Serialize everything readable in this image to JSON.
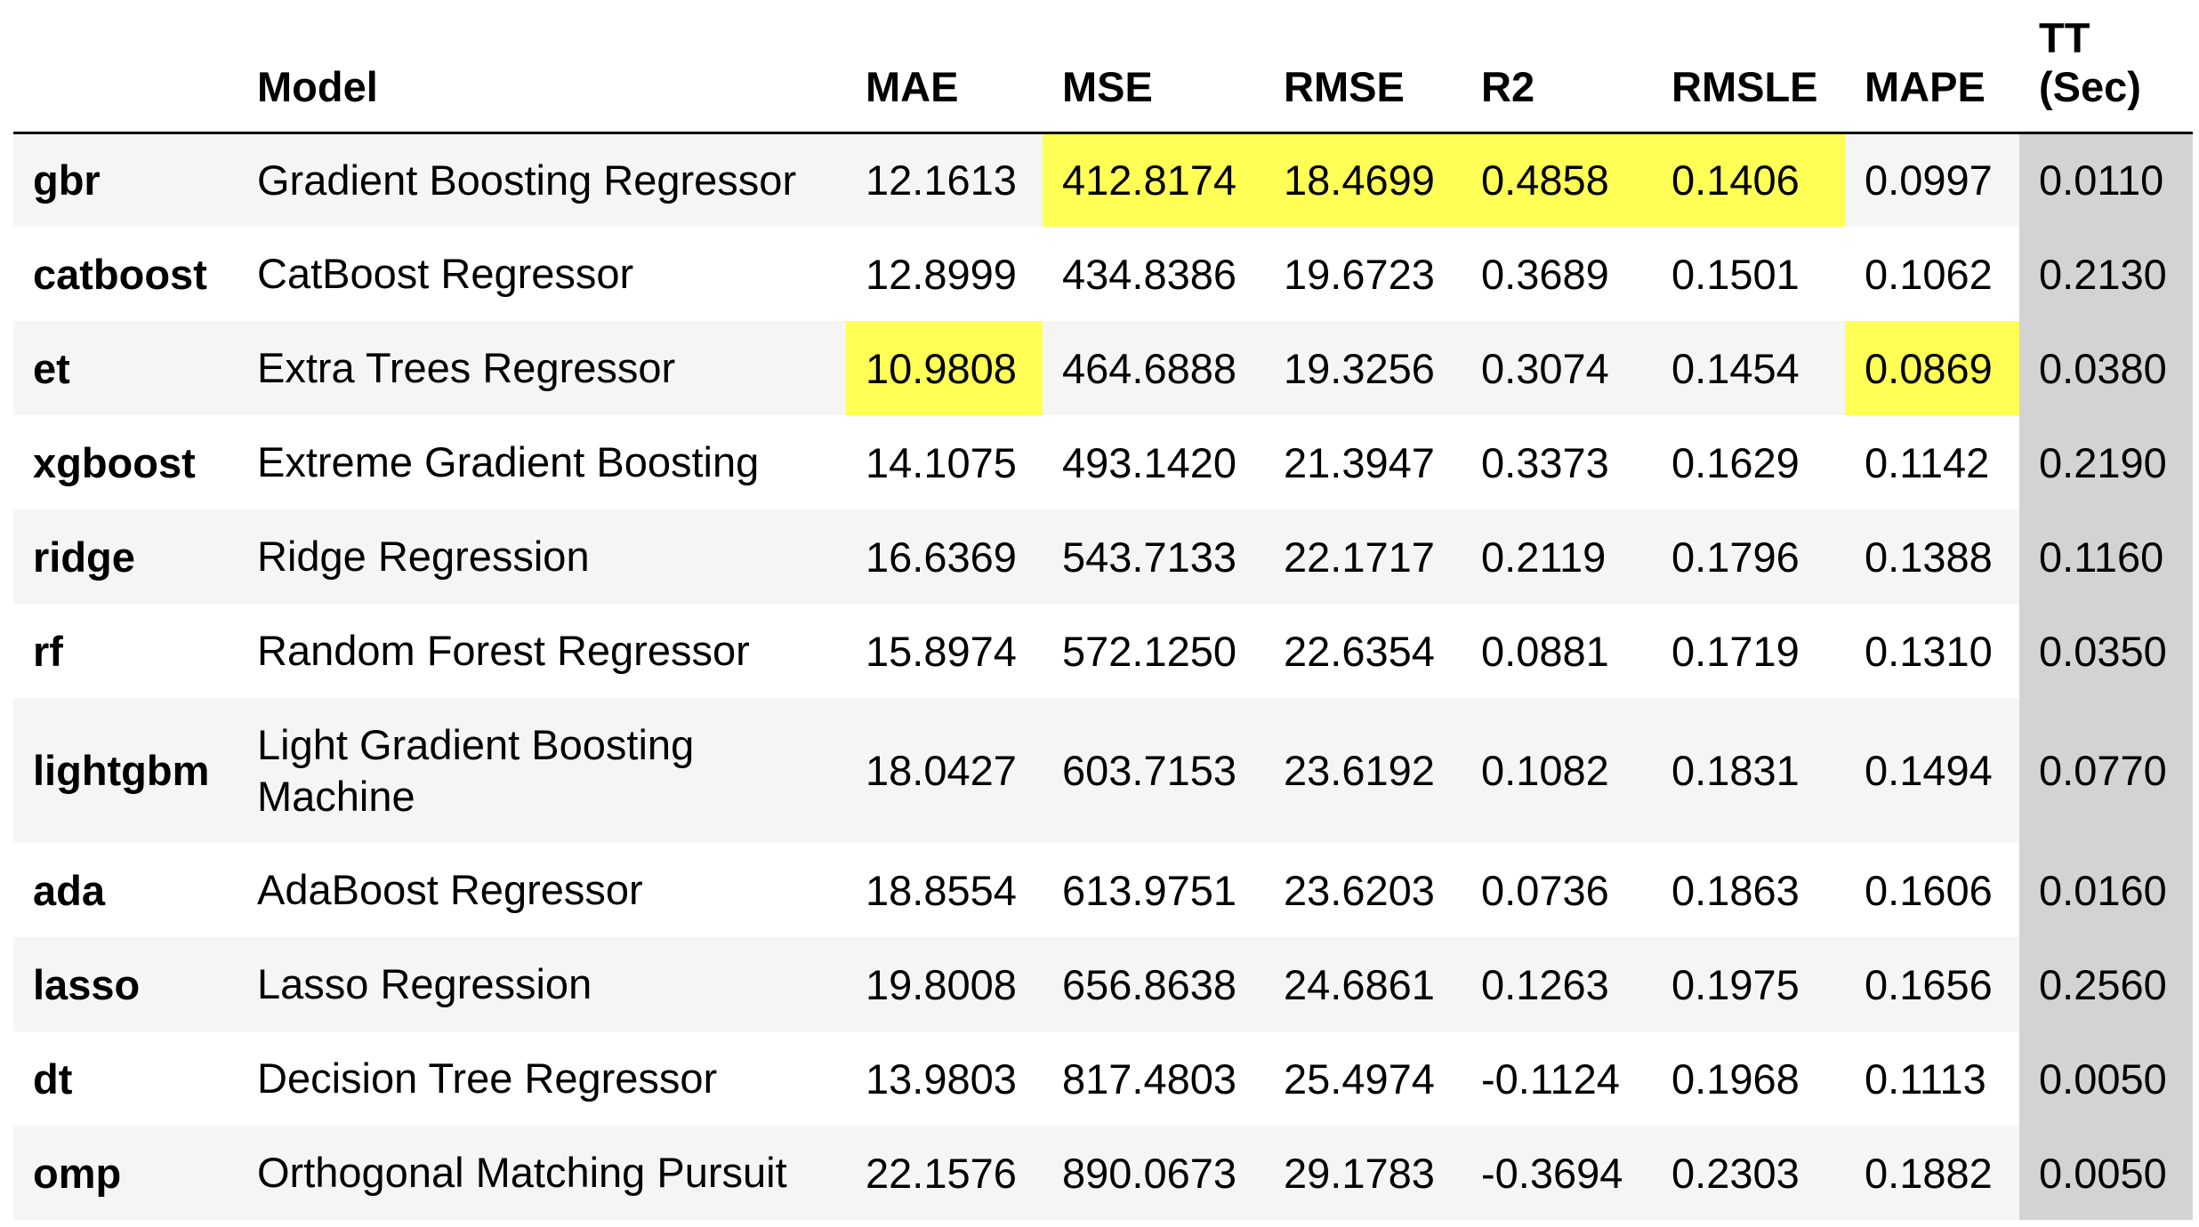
{
  "table": {
    "columns": [
      "",
      "Model",
      "MAE",
      "MSE",
      "RMSE",
      "R2",
      "RMSLE",
      "MAPE",
      "TT (Sec)"
    ],
    "header_tt_line1": "TT",
    "header_tt_line2": "(Sec)",
    "highlight_color": "#ffff55",
    "tt_column_color": "#d3d3d3",
    "rows": [
      {
        "id": "gbr",
        "model": "Gradient Boosting Regressor",
        "mae": "12.1613",
        "mse": "412.8174",
        "rmse": "18.4699",
        "r2": "0.4858",
        "rmsle": "0.1406",
        "mape": "0.0997",
        "tt": "0.0110",
        "highlighted": [
          "mse",
          "rmse",
          "r2",
          "rmsle"
        ]
      },
      {
        "id": "catboost",
        "model": "CatBoost Regressor",
        "mae": "12.8999",
        "mse": "434.8386",
        "rmse": "19.6723",
        "r2": "0.3689",
        "rmsle": "0.1501",
        "mape": "0.1062",
        "tt": "0.2130",
        "highlighted": []
      },
      {
        "id": "et",
        "model": "Extra Trees Regressor",
        "mae": "10.9808",
        "mse": "464.6888",
        "rmse": "19.3256",
        "r2": "0.3074",
        "rmsle": "0.1454",
        "mape": "0.0869",
        "tt": "0.0380",
        "highlighted": [
          "mae",
          "mape"
        ]
      },
      {
        "id": "xgboost",
        "model": "Extreme Gradient Boosting",
        "mae": "14.1075",
        "mse": "493.1420",
        "rmse": "21.3947",
        "r2": "0.3373",
        "rmsle": "0.1629",
        "mape": "0.1142",
        "tt": "0.2190",
        "highlighted": []
      },
      {
        "id": "ridge",
        "model": "Ridge Regression",
        "mae": "16.6369",
        "mse": "543.7133",
        "rmse": "22.1717",
        "r2": "0.2119",
        "rmsle": "0.1796",
        "mape": "0.1388",
        "tt": "0.1160",
        "highlighted": []
      },
      {
        "id": "rf",
        "model": "Random Forest Regressor",
        "mae": "15.8974",
        "mse": "572.1250",
        "rmse": "22.6354",
        "r2": "0.0881",
        "rmsle": "0.1719",
        "mape": "0.1310",
        "tt": "0.0350",
        "highlighted": []
      },
      {
        "id": "lightgbm",
        "model": "Light Gradient Boosting Machine",
        "mae": "18.0427",
        "mse": "603.7153",
        "rmse": "23.6192",
        "r2": "0.1082",
        "rmsle": "0.1831",
        "mape": "0.1494",
        "tt": "0.0770",
        "highlighted": []
      },
      {
        "id": "ada",
        "model": "AdaBoost Regressor",
        "mae": "18.8554",
        "mse": "613.9751",
        "rmse": "23.6203",
        "r2": "0.0736",
        "rmsle": "0.1863",
        "mape": "0.1606",
        "tt": "0.0160",
        "highlighted": []
      },
      {
        "id": "lasso",
        "model": "Lasso Regression",
        "mae": "19.8008",
        "mse": "656.8638",
        "rmse": "24.6861",
        "r2": "0.1263",
        "rmsle": "0.1975",
        "mape": "0.1656",
        "tt": "0.2560",
        "highlighted": []
      },
      {
        "id": "dt",
        "model": "Decision Tree Regressor",
        "mae": "13.9803",
        "mse": "817.4803",
        "rmse": "25.4974",
        "r2": "-0.1124",
        "rmsle": "0.1968",
        "mape": "0.1113",
        "tt": "0.0050",
        "highlighted": []
      },
      {
        "id": "omp",
        "model": "Orthogonal Matching Pursuit",
        "mae": "22.1576",
        "mse": "890.0673",
        "rmse": "29.1783",
        "r2": "-0.3694",
        "rmsle": "0.2303",
        "mape": "0.1882",
        "tt": "0.0050",
        "highlighted": []
      }
    ]
  }
}
